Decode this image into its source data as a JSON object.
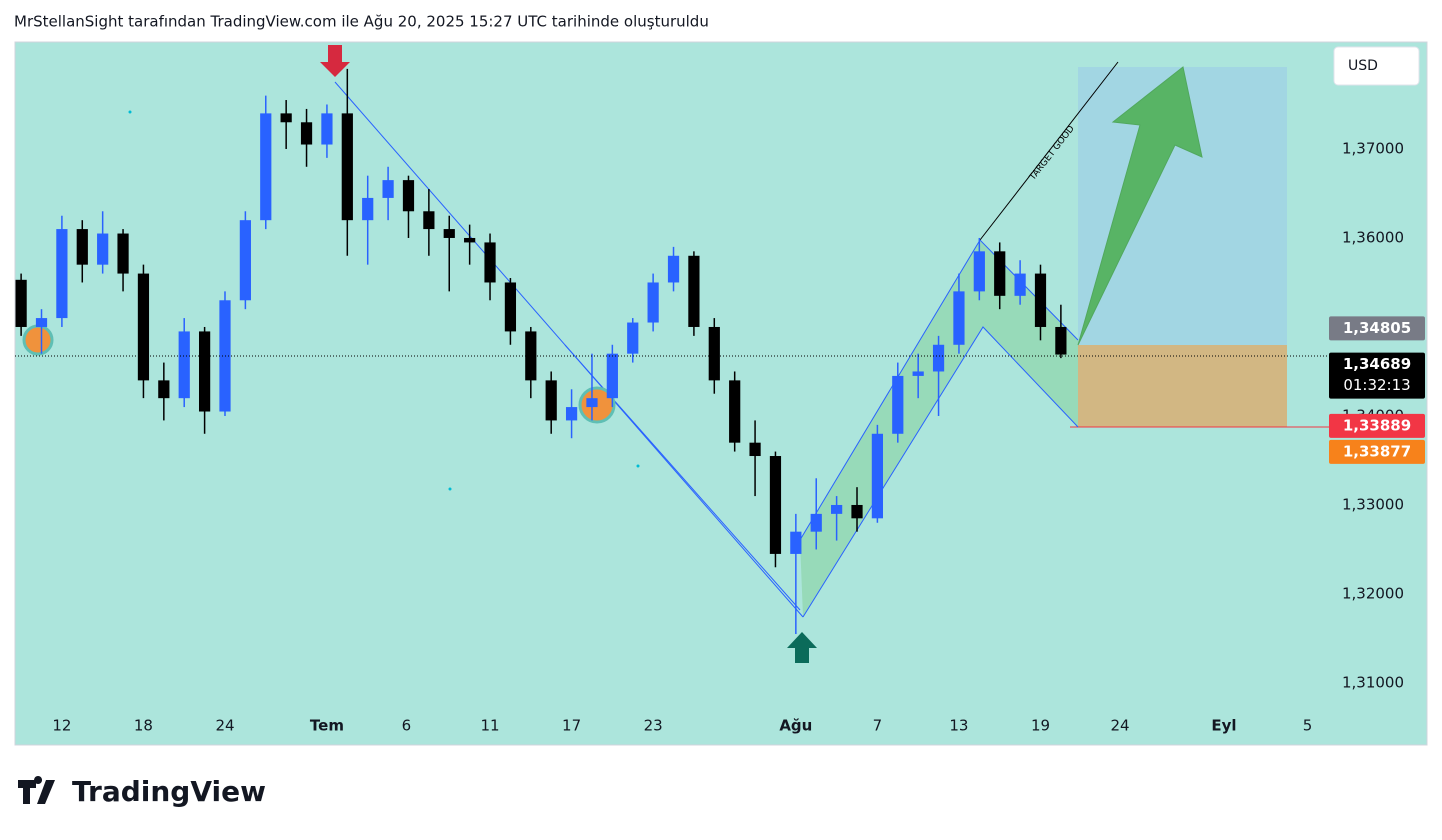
{
  "header": {
    "title": "MrStellanSight tarafından TradingView.com ile Ağu 20, 2025 15:27 UTC tarihinde oluşturuldu"
  },
  "chart_data": {
    "type": "candlestick",
    "currency": "USD",
    "up_color": "#2962ff",
    "down_color": "#000000",
    "x": [
      -2,
      -1,
      0,
      1,
      2,
      3,
      4,
      5,
      6,
      7,
      8,
      9,
      10,
      11,
      12,
      13,
      14,
      15,
      16,
      17,
      18,
      19,
      20,
      21,
      22,
      23,
      24,
      25,
      26,
      27,
      28,
      29,
      30,
      31,
      32,
      33,
      34,
      35,
      36,
      37,
      38,
      39,
      40,
      41,
      42,
      43,
      44,
      45,
      46,
      47,
      48,
      49
    ],
    "candles": [
      [
        1.3553,
        1.356,
        1.349,
        1.35
      ],
      [
        1.35,
        1.352,
        1.347,
        1.351
      ],
      [
        1.351,
        1.3625,
        1.35,
        1.361
      ],
      [
        1.361,
        1.362,
        1.355,
        1.357
      ],
      [
        1.357,
        1.363,
        1.356,
        1.3605
      ],
      [
        1.3605,
        1.361,
        1.354,
        1.356
      ],
      [
        1.356,
        1.357,
        1.342,
        1.344
      ],
      [
        1.344,
        1.346,
        1.3395,
        1.342
      ],
      [
        1.342,
        1.351,
        1.341,
        1.3495
      ],
      [
        1.3495,
        1.35,
        1.338,
        1.3405
      ],
      [
        1.3405,
        1.354,
        1.34,
        1.353
      ],
      [
        1.353,
        1.363,
        1.352,
        1.362
      ],
      [
        1.362,
        1.376,
        1.361,
        1.374
      ],
      [
        1.374,
        1.3755,
        1.37,
        1.373
      ],
      [
        1.373,
        1.3745,
        1.368,
        1.3705
      ],
      [
        1.3705,
        1.375,
        1.369,
        1.374
      ],
      [
        1.374,
        1.379,
        1.358,
        1.362
      ],
      [
        1.362,
        1.367,
        1.357,
        1.3645
      ],
      [
        1.3645,
        1.368,
        1.362,
        1.3665
      ],
      [
        1.3665,
        1.367,
        1.36,
        1.363
      ],
      [
        1.363,
        1.3655,
        1.358,
        1.361
      ],
      [
        1.361,
        1.3625,
        1.354,
        1.36
      ],
      [
        1.36,
        1.3615,
        1.357,
        1.3595
      ],
      [
        1.3595,
        1.3605,
        1.353,
        1.355
      ],
      [
        1.355,
        1.3555,
        1.348,
        1.3495
      ],
      [
        1.3495,
        1.35,
        1.342,
        1.344
      ],
      [
        1.344,
        1.345,
        1.338,
        1.3395
      ],
      [
        1.3395,
        1.343,
        1.3375,
        1.341
      ],
      [
        1.341,
        1.347,
        1.3395,
        1.342
      ],
      [
        1.342,
        1.348,
        1.341,
        1.347
      ],
      [
        1.347,
        1.351,
        1.346,
        1.3505
      ],
      [
        1.3505,
        1.356,
        1.3495,
        1.355
      ],
      [
        1.355,
        1.359,
        1.354,
        1.358
      ],
      [
        1.358,
        1.3585,
        1.349,
        1.35
      ],
      [
        1.35,
        1.351,
        1.3425,
        1.344
      ],
      [
        1.344,
        1.345,
        1.336,
        1.337
      ],
      [
        1.337,
        1.3395,
        1.331,
        1.3355
      ],
      [
        1.3355,
        1.336,
        1.323,
        1.3245
      ],
      [
        1.3245,
        1.329,
        1.3155,
        1.327
      ],
      [
        1.327,
        1.333,
        1.325,
        1.329
      ],
      [
        1.329,
        1.331,
        1.326,
        1.33
      ],
      [
        1.33,
        1.332,
        1.327,
        1.3285
      ],
      [
        1.3285,
        1.339,
        1.328,
        1.338
      ],
      [
        1.338,
        1.346,
        1.337,
        1.3445
      ],
      [
        1.3445,
        1.347,
        1.342,
        1.345
      ],
      [
        1.345,
        1.349,
        1.34,
        1.348
      ],
      [
        1.348,
        1.356,
        1.347,
        1.354
      ],
      [
        1.354,
        1.36,
        1.353,
        1.3585
      ],
      [
        1.3585,
        1.3595,
        1.352,
        1.3535
      ],
      [
        1.3535,
        1.3575,
        1.3525,
        1.356
      ],
      [
        1.356,
        1.357,
        1.3485,
        1.35
      ],
      [
        1.35,
        1.3525,
        1.3465,
        1.3469
      ]
    ],
    "xlim": [
      -2.3,
      62.2
    ],
    "ylim": [
      1.30303,
      1.38202
    ],
    "xticks": [
      {
        "value": 0,
        "label": "12"
      },
      {
        "value": 4,
        "label": "18"
      },
      {
        "value": 8,
        "label": "24"
      },
      {
        "value": 13,
        "label": "Tem"
      },
      {
        "value": 16.9,
        "label": "6"
      },
      {
        "value": 21,
        "label": "11"
      },
      {
        "value": 25,
        "label": "17"
      },
      {
        "value": 29,
        "label": "23"
      },
      {
        "value": 36,
        "label": "Ağu"
      },
      {
        "value": 40,
        "label": "7"
      },
      {
        "value": 44,
        "label": "13"
      },
      {
        "value": 48,
        "label": "19"
      },
      {
        "value": 51.9,
        "label": "24"
      },
      {
        "value": 57,
        "label": "Eyl"
      },
      {
        "value": 61.1,
        "label": "5"
      }
    ],
    "yticks": [
      {
        "value": 1.31,
        "label": "1,31000"
      },
      {
        "value": 1.32,
        "label": "1,32000"
      },
      {
        "value": 1.33,
        "label": "1,33000"
      },
      {
        "value": 1.34,
        "label": "1,34000"
      },
      {
        "value": 1.36,
        "label": "1,36000"
      },
      {
        "value": 1.37,
        "label": "1,37000"
      }
    ],
    "price_tags": [
      {
        "value": 1.34805,
        "label": "1,34805",
        "color": "#787b86"
      },
      {
        "value": 1.34689,
        "label": "1,34689",
        "color": "#000000",
        "countdown": "01:32:13"
      },
      {
        "value": 1.33889,
        "label": "1,33889",
        "color": "#f23645"
      },
      {
        "value": 1.33877,
        "label": "1,33877",
        "color": "#f7821b"
      }
    ],
    "annotation": "TARGET GOOD"
  },
  "footer": {
    "logo": "TradingView"
  }
}
